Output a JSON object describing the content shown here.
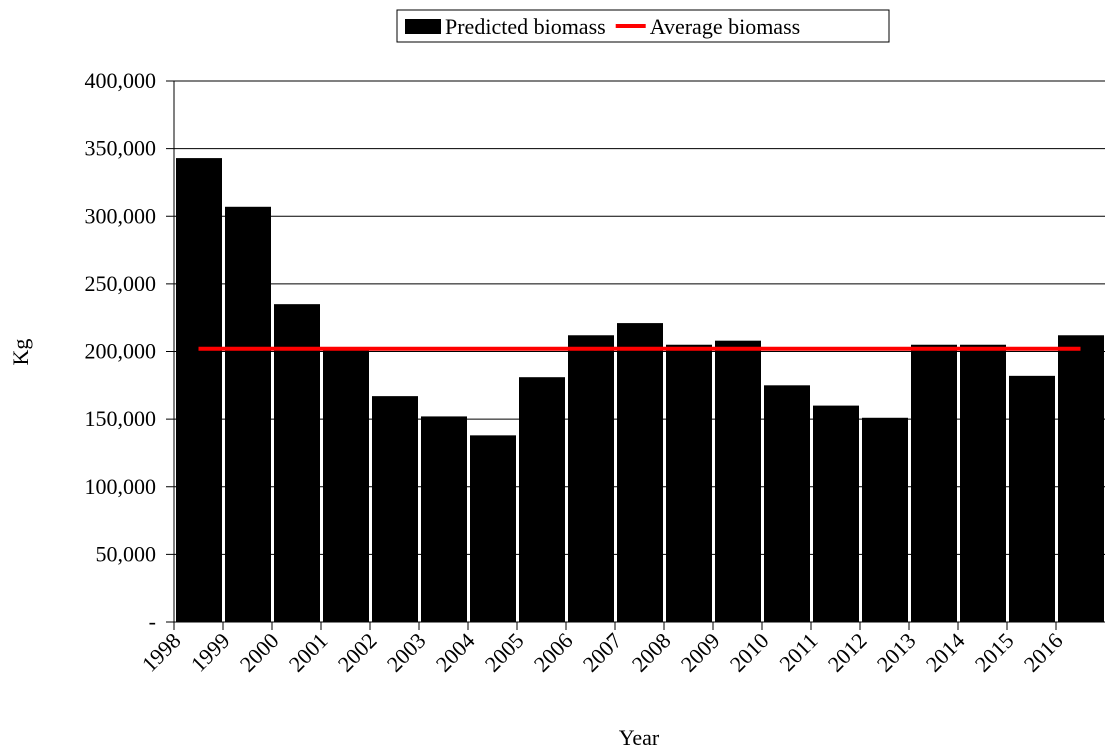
{
  "chart_data": {
    "type": "bar",
    "x_label": "Year",
    "y_label": "Kg",
    "categories": [
      "1998",
      "1999",
      "2000",
      "2001",
      "2002",
      "2003",
      "2004",
      "2005",
      "2006",
      "2007",
      "2008",
      "2009",
      "2010",
      "2011",
      "2012",
      "2013",
      "2014",
      "2015",
      "2016"
    ],
    "series": [
      {
        "name": "Predicted biomass",
        "type": "bar",
        "color": "#000000",
        "values": [
          343000,
          307000,
          235000,
          202000,
          167000,
          152000,
          138000,
          181000,
          212000,
          221000,
          205000,
          208000,
          175000,
          160000,
          151000,
          205000,
          205000,
          182000,
          212000
        ]
      },
      {
        "name": "Average biomass",
        "type": "line",
        "color": "#ff0000",
        "values": [
          202000,
          202000,
          202000,
          202000,
          202000,
          202000,
          202000,
          202000,
          202000,
          202000,
          202000,
          202000,
          202000,
          202000,
          202000,
          202000,
          202000,
          202000,
          202000
        ]
      }
    ],
    "ylim": [
      0,
      400000
    ],
    "yticks": [
      {
        "value": 0,
        "label": "-"
      },
      {
        "value": 50000,
        "label": "50,000"
      },
      {
        "value": 100000,
        "label": "100,000"
      },
      {
        "value": 150000,
        "label": "150,000"
      },
      {
        "value": 200000,
        "label": "200,000"
      },
      {
        "value": 250000,
        "label": "250,000"
      },
      {
        "value": 300000,
        "label": "300,000"
      },
      {
        "value": 350000,
        "label": "350,000"
      },
      {
        "value": 400000,
        "label": "400,000"
      }
    ],
    "grid": true,
    "legend": "top"
  }
}
